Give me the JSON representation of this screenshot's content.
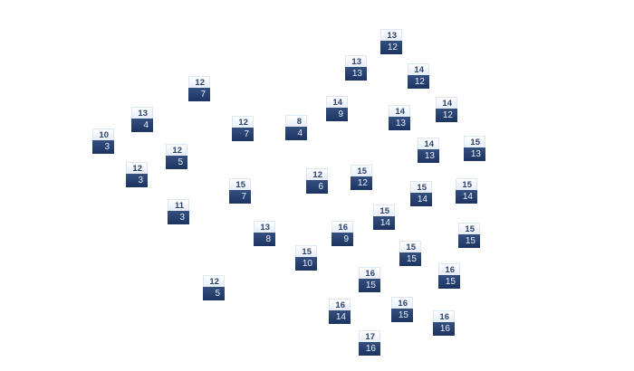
{
  "nodes": [
    {
      "top": "13",
      "bottom": "12"
    },
    {
      "top": "13",
      "bottom": "13"
    },
    {
      "top": "14",
      "bottom": "12"
    },
    {
      "top": "12",
      "bottom": "7"
    },
    {
      "top": "14",
      "bottom": "9"
    },
    {
      "top": "14",
      "bottom": "12"
    },
    {
      "top": "13",
      "bottom": "4"
    },
    {
      "top": "14",
      "bottom": "13"
    },
    {
      "top": "12",
      "bottom": "7"
    },
    {
      "top": "8",
      "bottom": "4"
    },
    {
      "top": "10",
      "bottom": "3"
    },
    {
      "top": "15",
      "bottom": "13"
    },
    {
      "top": "14",
      "bottom": "13"
    },
    {
      "top": "12",
      "bottom": "5"
    },
    {
      "top": "12",
      "bottom": "3"
    },
    {
      "top": "15",
      "bottom": "12"
    },
    {
      "top": "12",
      "bottom": "6"
    },
    {
      "top": "15",
      "bottom": "7"
    },
    {
      "top": "15",
      "bottom": "14"
    },
    {
      "top": "15",
      "bottom": "14"
    },
    {
      "top": "11",
      "bottom": "3"
    },
    {
      "top": "15",
      "bottom": "14"
    },
    {
      "top": "16",
      "bottom": "9"
    },
    {
      "top": "13",
      "bottom": "8"
    },
    {
      "top": "15",
      "bottom": "15"
    },
    {
      "top": "15",
      "bottom": "10"
    },
    {
      "top": "15",
      "bottom": "15"
    },
    {
      "top": "16",
      "bottom": "15"
    },
    {
      "top": "16",
      "bottom": "15"
    },
    {
      "top": "12",
      "bottom": "5"
    },
    {
      "top": "16",
      "bottom": "15"
    },
    {
      "top": "16",
      "bottom": "14"
    },
    {
      "top": "16",
      "bottom": "16"
    },
    {
      "top": "17",
      "bottom": "16"
    }
  ],
  "colors": {
    "top_fill": "#eef3fb",
    "bottom_fill": "#243d6b",
    "top_text": "#2c4470",
    "bottom_text": "#e8eef8"
  }
}
